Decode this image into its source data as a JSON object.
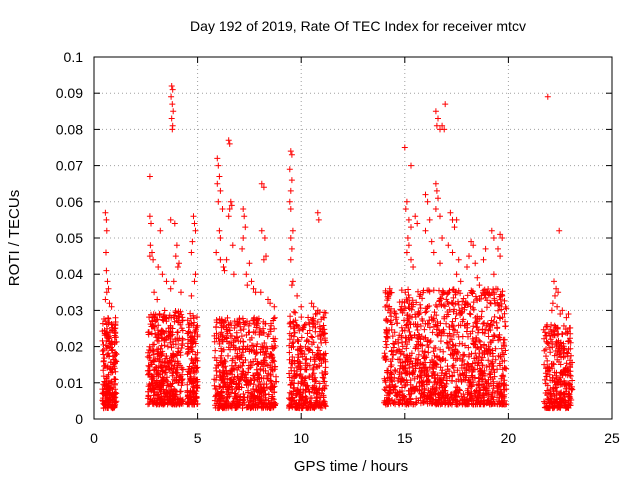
{
  "chart_data": {
    "type": "scatter",
    "title": "Day 192 of 2019, Rate Of TEC Index for receiver mtcv",
    "xlabel": "GPS time / hours",
    "ylabel": "ROTI / TECUs",
    "xlim": [
      0,
      25
    ],
    "ylim": [
      0,
      0.1
    ],
    "x_ticks": [
      0,
      5,
      10,
      15,
      20,
      25
    ],
    "x_tick_labels": [
      "0",
      "5",
      "10",
      "15",
      "20",
      "25"
    ],
    "y_ticks": [
      0,
      0.01,
      0.02,
      0.03,
      0.04,
      0.05,
      0.06,
      0.07,
      0.08,
      0.09,
      0.1
    ],
    "y_tick_labels": [
      "0",
      "0.01",
      "0.02",
      "0.03",
      "0.04",
      "0.05",
      "0.06",
      "0.07",
      "0.08",
      "0.09",
      "0.1"
    ],
    "grid": true,
    "marker": "+",
    "color": "#ff0000",
    "clusters": [
      {
        "x_range": [
          0.4,
          1.1
        ],
        "y_range": [
          0.003,
          0.028
        ],
        "n": 220
      },
      {
        "x_range": [
          2.6,
          4.3
        ],
        "y_range": [
          0.004,
          0.03
        ],
        "n": 460
      },
      {
        "x_range": [
          4.5,
          5.0
        ],
        "y_range": [
          0.004,
          0.03
        ],
        "n": 160
      },
      {
        "x_range": [
          5.8,
          8.8
        ],
        "y_range": [
          0.003,
          0.028
        ],
        "n": 640
      },
      {
        "x_range": [
          9.4,
          11.2
        ],
        "y_range": [
          0.003,
          0.03
        ],
        "n": 380
      },
      {
        "x_range": [
          14.0,
          19.9
        ],
        "y_range": [
          0.004,
          0.036
        ],
        "n": 1250
      },
      {
        "x_range": [
          21.7,
          23.1
        ],
        "y_range": [
          0.003,
          0.026
        ],
        "n": 300
      }
    ],
    "points": [
      [
        0.55,
        0.057
      ],
      [
        0.6,
        0.055
      ],
      [
        0.62,
        0.052
      ],
      [
        0.58,
        0.046
      ],
      [
        0.6,
        0.041
      ],
      [
        0.65,
        0.038
      ],
      [
        0.7,
        0.036
      ],
      [
        0.62,
        0.035
      ],
      [
        0.75,
        0.032
      ],
      [
        0.85,
        0.031
      ],
      [
        0.55,
        0.033
      ],
      [
        2.7,
        0.067
      ],
      [
        2.7,
        0.056
      ],
      [
        2.75,
        0.054
      ],
      [
        2.72,
        0.048
      ],
      [
        2.8,
        0.046
      ],
      [
        2.7,
        0.045
      ],
      [
        2.85,
        0.044
      ],
      [
        2.9,
        0.035
      ],
      [
        3.05,
        0.033
      ],
      [
        3.2,
        0.052
      ],
      [
        3.1,
        0.042
      ],
      [
        3.3,
        0.04
      ],
      [
        3.5,
        0.038
      ],
      [
        3.75,
        0.092
      ],
      [
        3.8,
        0.091
      ],
      [
        3.72,
        0.089
      ],
      [
        3.78,
        0.087
      ],
      [
        3.82,
        0.085
      ],
      [
        3.75,
        0.083
      ],
      [
        3.8,
        0.081
      ],
      [
        3.78,
        0.08
      ],
      [
        3.7,
        0.055
      ],
      [
        3.9,
        0.054
      ],
      [
        4.0,
        0.048
      ],
      [
        3.95,
        0.045
      ],
      [
        4.1,
        0.043
      ],
      [
        4.05,
        0.042
      ],
      [
        3.85,
        0.038
      ],
      [
        3.7,
        0.036
      ],
      [
        4.2,
        0.035
      ],
      [
        4.8,
        0.056
      ],
      [
        4.85,
        0.054
      ],
      [
        4.9,
        0.052
      ],
      [
        4.75,
        0.049
      ],
      [
        4.7,
        0.046
      ],
      [
        4.9,
        0.04
      ],
      [
        4.85,
        0.038
      ],
      [
        4.7,
        0.034
      ],
      [
        5.95,
        0.072
      ],
      [
        6.0,
        0.07
      ],
      [
        6.05,
        0.067
      ],
      [
        5.95,
        0.065
      ],
      [
        6.1,
        0.063
      ],
      [
        6.0,
        0.06
      ],
      [
        6.2,
        0.058
      ],
      [
        6.05,
        0.052
      ],
      [
        6.1,
        0.05
      ],
      [
        5.9,
        0.046
      ],
      [
        6.1,
        0.044
      ],
      [
        6.25,
        0.042
      ],
      [
        6.3,
        0.041
      ],
      [
        6.5,
        0.077
      ],
      [
        6.55,
        0.076
      ],
      [
        6.6,
        0.06
      ],
      [
        6.55,
        0.058
      ],
      [
        6.65,
        0.059
      ],
      [
        6.5,
        0.056
      ],
      [
        6.7,
        0.048
      ],
      [
        6.4,
        0.044
      ],
      [
        6.75,
        0.04
      ],
      [
        7.2,
        0.058
      ],
      [
        7.25,
        0.056
      ],
      [
        7.3,
        0.053
      ],
      [
        7.2,
        0.05
      ],
      [
        7.15,
        0.047
      ],
      [
        7.5,
        0.043
      ],
      [
        7.35,
        0.04
      ],
      [
        7.6,
        0.038
      ],
      [
        7.4,
        0.037
      ],
      [
        7.8,
        0.035
      ],
      [
        7.7,
        0.036
      ],
      [
        8.1,
        0.065
      ],
      [
        8.2,
        0.064
      ],
      [
        8.1,
        0.052
      ],
      [
        8.25,
        0.05
      ],
      [
        8.3,
        0.045
      ],
      [
        8.2,
        0.044
      ],
      [
        8.05,
        0.035
      ],
      [
        8.4,
        0.033
      ],
      [
        8.5,
        0.032
      ],
      [
        8.7,
        0.031
      ],
      [
        9.5,
        0.074
      ],
      [
        9.55,
        0.073
      ],
      [
        9.45,
        0.069
      ],
      [
        9.55,
        0.066
      ],
      [
        9.5,
        0.063
      ],
      [
        9.45,
        0.06
      ],
      [
        9.5,
        0.058
      ],
      [
        9.6,
        0.052
      ],
      [
        9.5,
        0.05
      ],
      [
        9.55,
        0.047
      ],
      [
        9.5,
        0.044
      ],
      [
        9.6,
        0.038
      ],
      [
        9.55,
        0.037
      ],
      [
        9.8,
        0.034
      ],
      [
        10.0,
        0.031
      ],
      [
        10.8,
        0.057
      ],
      [
        10.85,
        0.055
      ],
      [
        10.5,
        0.032
      ],
      [
        10.6,
        0.031
      ],
      [
        10.8,
        0.03
      ],
      [
        15.0,
        0.075
      ],
      [
        15.1,
        0.06
      ],
      [
        15.05,
        0.058
      ],
      [
        15.3,
        0.07
      ],
      [
        15.2,
        0.055
      ],
      [
        15.3,
        0.053
      ],
      [
        15.15,
        0.05
      ],
      [
        15.2,
        0.048
      ],
      [
        15.1,
        0.046
      ],
      [
        15.3,
        0.044
      ],
      [
        15.4,
        0.042
      ],
      [
        15.5,
        0.056
      ],
      [
        15.6,
        0.054
      ],
      [
        16.0,
        0.062
      ],
      [
        16.1,
        0.06
      ],
      [
        16.2,
        0.055
      ],
      [
        16.0,
        0.052
      ],
      [
        16.3,
        0.049
      ],
      [
        16.5,
        0.065
      ],
      [
        16.55,
        0.063
      ],
      [
        16.6,
        0.061
      ],
      [
        16.5,
        0.058
      ],
      [
        16.7,
        0.056
      ],
      [
        16.8,
        0.05
      ],
      [
        16.4,
        0.046
      ],
      [
        16.7,
        0.043
      ],
      [
        16.5,
        0.085
      ],
      [
        16.6,
        0.083
      ],
      [
        16.55,
        0.081
      ],
      [
        16.7,
        0.08
      ],
      [
        16.8,
        0.081
      ],
      [
        16.9,
        0.08
      ],
      [
        16.95,
        0.087
      ],
      [
        17.2,
        0.057
      ],
      [
        17.3,
        0.055
      ],
      [
        17.5,
        0.055
      ],
      [
        17.4,
        0.053
      ],
      [
        17.1,
        0.048
      ],
      [
        17.3,
        0.046
      ],
      [
        17.6,
        0.044
      ],
      [
        17.5,
        0.04
      ],
      [
        17.7,
        0.038
      ],
      [
        18.2,
        0.049
      ],
      [
        18.3,
        0.048
      ],
      [
        18.1,
        0.045
      ],
      [
        18.4,
        0.043
      ],
      [
        18.0,
        0.042
      ],
      [
        18.5,
        0.039
      ],
      [
        18.6,
        0.037
      ],
      [
        18.8,
        0.044
      ],
      [
        18.9,
        0.047
      ],
      [
        19.2,
        0.052
      ],
      [
        19.3,
        0.05
      ],
      [
        19.6,
        0.051
      ],
      [
        19.7,
        0.05
      ],
      [
        19.5,
        0.047
      ],
      [
        19.6,
        0.045
      ],
      [
        19.3,
        0.04
      ],
      [
        19.4,
        0.036
      ],
      [
        19.7,
        0.034
      ],
      [
        21.9,
        0.089
      ],
      [
        22.45,
        0.052
      ],
      [
        22.2,
        0.038
      ],
      [
        22.3,
        0.036
      ],
      [
        22.25,
        0.034
      ],
      [
        22.15,
        0.032
      ],
      [
        22.4,
        0.035
      ],
      [
        22.1,
        0.03
      ],
      [
        22.35,
        0.031
      ],
      [
        22.6,
        0.03
      ],
      [
        22.9,
        0.029
      ],
      [
        22.5,
        0.029
      ],
      [
        22.8,
        0.028
      ]
    ]
  }
}
